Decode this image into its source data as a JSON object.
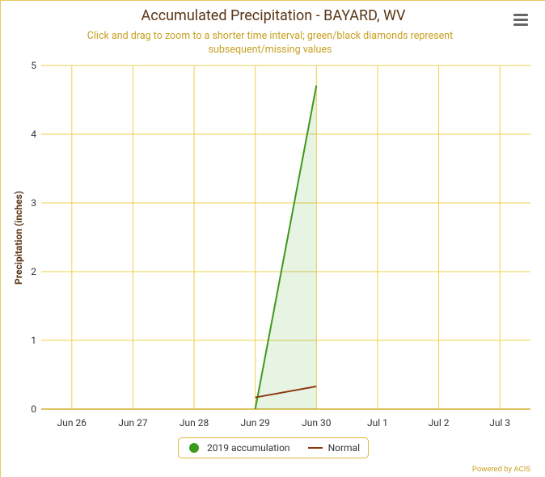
{
  "chart_data": {
    "type": "line",
    "title": "Accumulated Precipitation - BAYARD, WV",
    "subtitle": "Click and drag to zoom to a shorter time interval; green/black diamonds represent subsequent/missing values",
    "y_label": "Precipitation (inches)",
    "categories": [
      "Jun 26",
      "Jun 27",
      "Jun 28",
      "Jun 29",
      "Jun 30",
      "Jul 1",
      "Jul 2",
      "Jul 3"
    ],
    "series": [
      {
        "name": "2019 accumulation",
        "color": "#3c9a1c",
        "area": true,
        "values": [
          null,
          null,
          null,
          0,
          4.71,
          null,
          null,
          null
        ]
      },
      {
        "name": "Normal",
        "color": "#8b3a10",
        "area": false,
        "values": [
          null,
          null,
          null,
          0.17,
          0.33,
          null,
          null,
          null
        ]
      }
    ],
    "ylim": [
      0,
      5
    ],
    "yticks": [
      0,
      1,
      2,
      3,
      4,
      5
    ],
    "grid": true,
    "grid_color": "#f0d050",
    "credit": "Powered by ACIS"
  }
}
